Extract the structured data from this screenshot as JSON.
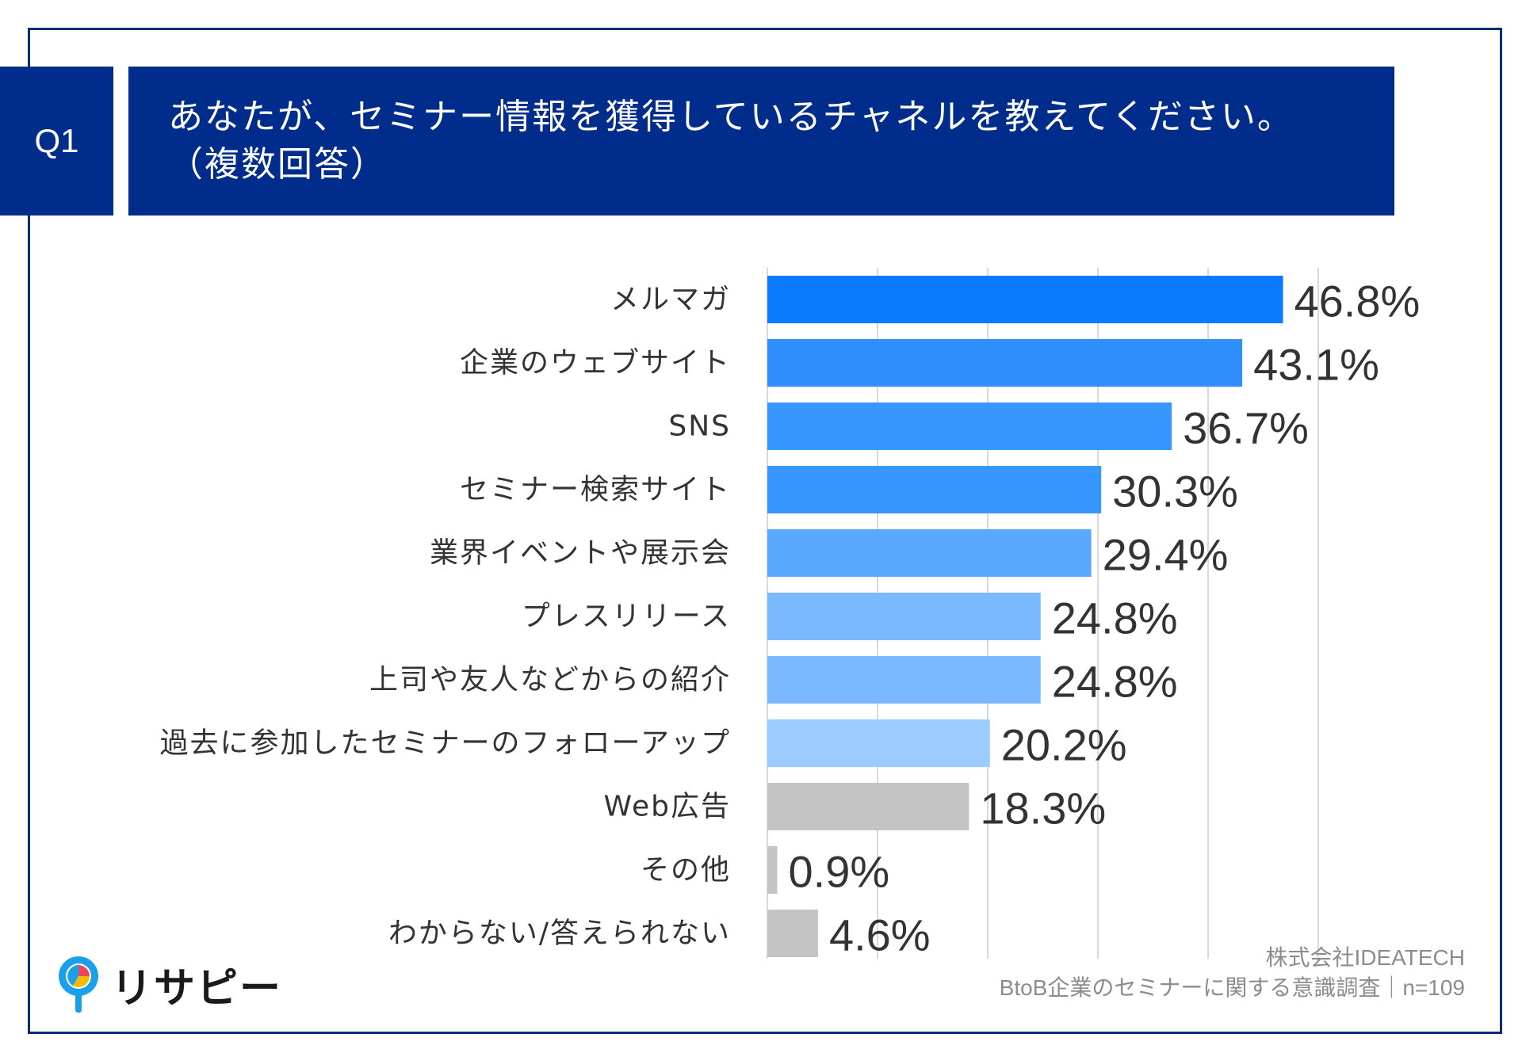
{
  "question": {
    "number": "Q1",
    "title_line1": "あなたが、セミナー情報を獲得しているチャネルを教えてください。",
    "title_line2": "（複数回答）"
  },
  "chart_data": {
    "type": "bar",
    "orientation": "horizontal",
    "categories": [
      "メルマガ",
      "企業のウェブサイト",
      "SNS",
      "セミナー検索サイト",
      "業界イベントや展示会",
      "プレスリリース",
      "上司や友人などからの紹介",
      "過去に参加したセミナーのフォローアップ",
      "Web広告",
      "その他",
      "わからない/答えられない"
    ],
    "values": [
      46.8,
      43.1,
      36.7,
      30.3,
      29.4,
      24.8,
      24.8,
      20.2,
      18.3,
      0.9,
      4.6
    ],
    "value_labels": [
      "46.8%",
      "43.1%",
      "36.7%",
      "30.3%",
      "29.4%",
      "24.8%",
      "24.8%",
      "20.2%",
      "18.3%",
      "0.9%",
      "4.6%"
    ],
    "colors": [
      "#0a7bff",
      "#2f8fff",
      "#3896ff",
      "#3896ff",
      "#5aa8ff",
      "#7ab8ff",
      "#7ab8ff",
      "#9ccbff",
      "#c4c4c4",
      "#c4c4c4",
      "#c4c4c4"
    ],
    "xlim": [
      0,
      50
    ],
    "grid": true,
    "legend": "none"
  },
  "branding": {
    "logo_text": "リサピー"
  },
  "source": {
    "company": "株式会社IDEATECH",
    "survey": "BtoB企業のセミナーに関する意識調査｜n=109"
  }
}
